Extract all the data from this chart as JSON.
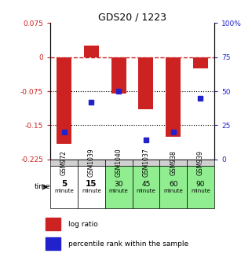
{
  "title": "GDS20 / 1223",
  "samples": [
    "GSM972",
    "GSM1039",
    "GSM1040",
    "GSM1037",
    "GSM938",
    "GSM939"
  ],
  "times": [
    "5",
    "15",
    "30",
    "45",
    "60",
    "90"
  ],
  "time_colors": [
    "#ffffff",
    "#ffffff",
    "#90ee90",
    "#90ee90",
    "#90ee90",
    "#90ee90"
  ],
  "log_ratios": [
    -0.19,
    0.025,
    -0.08,
    -0.115,
    -0.175,
    -0.025
  ],
  "percentile_ranks": [
    20,
    42,
    50,
    14,
    20,
    45
  ],
  "ylim_left": [
    -0.225,
    0.075
  ],
  "ylim_right": [
    0,
    100
  ],
  "yticks_left": [
    0.075,
    0,
    -0.075,
    -0.15,
    -0.225
  ],
  "yticks_right": [
    100,
    75,
    50,
    25,
    0
  ],
  "bar_color": "#cc2222",
  "dot_color": "#2222cc",
  "hline_color": "#cc2222",
  "sample_bg": "#d0d0d0",
  "legend_red_label": "log ratio",
  "legend_blue_label": "percentile rank within the sample",
  "bar_width": 0.55
}
